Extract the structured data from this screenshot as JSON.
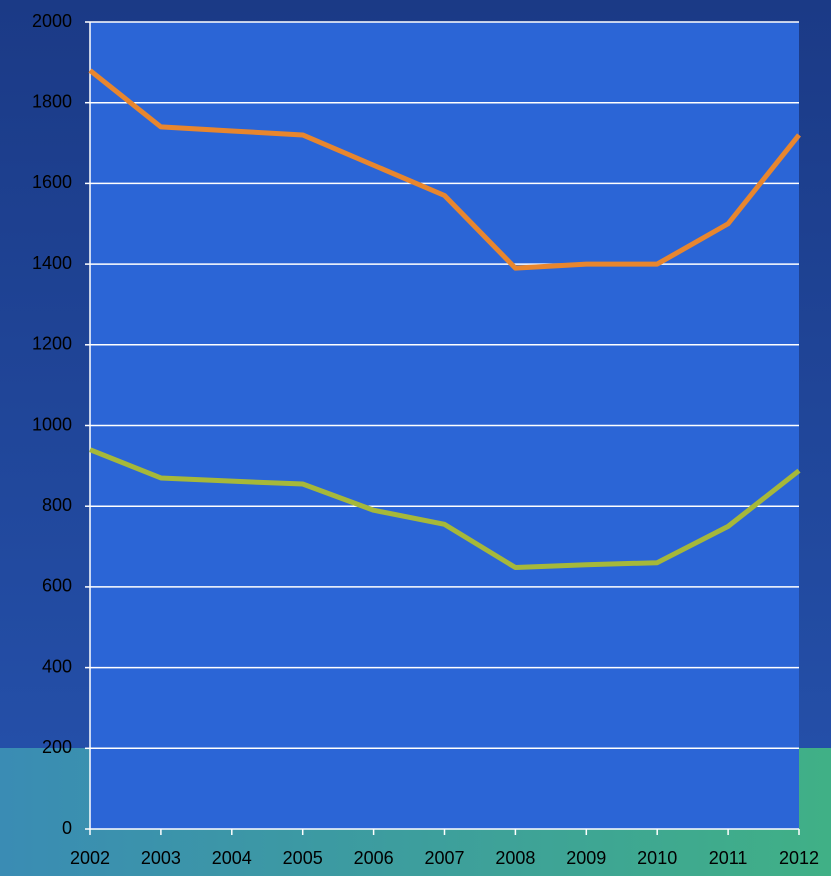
{
  "chart_data": {
    "type": "line",
    "categories": [
      "2002",
      "2003",
      "2004",
      "2005",
      "2006",
      "2007",
      "2008",
      "2009",
      "2010",
      "2011",
      "2012"
    ],
    "series": [
      {
        "color": "#e8862e",
        "values": [
          1880,
          1740,
          1730,
          1720,
          1645,
          1570,
          1390,
          1400,
          1400,
          1500,
          1720
        ]
      },
      {
        "color": "#a6b83a",
        "values": [
          940,
          870,
          862,
          855,
          790,
          755,
          648,
          655,
          660,
          750,
          888
        ]
      }
    ],
    "ylim": [
      0,
      2000
    ],
    "yticks": [
      0,
      200,
      400,
      600,
      800,
      1000,
      1200,
      1400,
      1600,
      1800,
      2000
    ],
    "grid": true
  }
}
